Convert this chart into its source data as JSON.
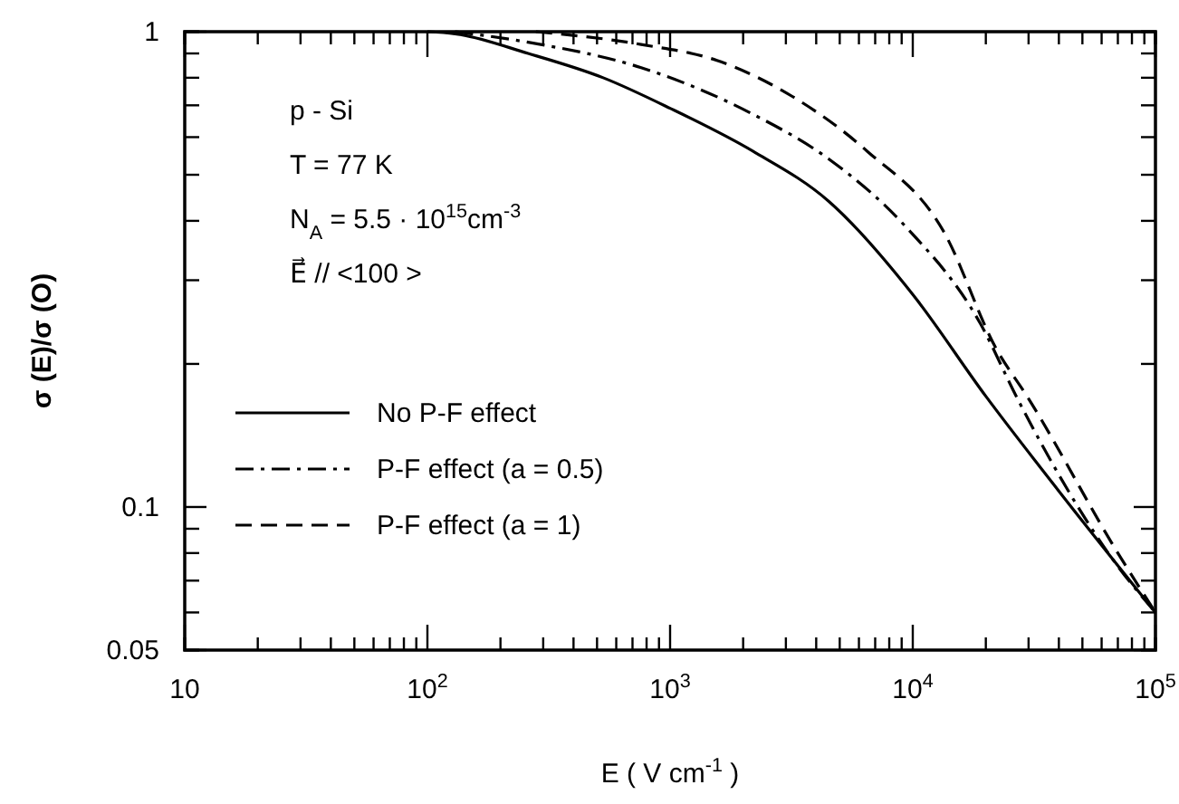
{
  "chart_data": {
    "type": "line",
    "xlabel": "E ( V cm$^{-1}$ )",
    "ylabel": "σ (E)/σ (O)",
    "log": "xy",
    "xlim": [
      10,
      100000
    ],
    "ylim": [
      0.05,
      1
    ],
    "xticks": [
      {
        "value": 10,
        "label": "10"
      },
      {
        "value": 20,
        "label": null
      },
      {
        "value": 30,
        "label": null
      },
      {
        "value": 40,
        "label": null
      },
      {
        "value": 50,
        "label": null
      },
      {
        "value": 60,
        "label": null
      },
      {
        "value": 70,
        "label": null
      },
      {
        "value": 80,
        "label": null
      },
      {
        "value": 90,
        "label": null
      },
      {
        "value": 100,
        "label": "10$^{2}$"
      },
      {
        "value": 200,
        "label": null
      },
      {
        "value": 300,
        "label": null
      },
      {
        "value": 400,
        "label": null
      },
      {
        "value": 500,
        "label": null
      },
      {
        "value": 600,
        "label": null
      },
      {
        "value": 700,
        "label": null
      },
      {
        "value": 800,
        "label": null
      },
      {
        "value": 900,
        "label": null
      },
      {
        "value": 1000,
        "label": "10$^{3}$"
      },
      {
        "value": 2000,
        "label": null
      },
      {
        "value": 3000,
        "label": null
      },
      {
        "value": 4000,
        "label": null
      },
      {
        "value": 5000,
        "label": null
      },
      {
        "value": 6000,
        "label": null
      },
      {
        "value": 7000,
        "label": null
      },
      {
        "value": 8000,
        "label": null
      },
      {
        "value": 9000,
        "label": null
      },
      {
        "value": 10000,
        "label": "10$^{4}$"
      },
      {
        "value": 20000,
        "label": null
      },
      {
        "value": 30000,
        "label": null
      },
      {
        "value": 40000,
        "label": null
      },
      {
        "value": 50000,
        "label": null
      },
      {
        "value": 60000,
        "label": null
      },
      {
        "value": 70000,
        "label": null
      },
      {
        "value": 80000,
        "label": null
      },
      {
        "value": 90000,
        "label": null
      },
      {
        "value": 100000,
        "label": "10$^{5}$"
      }
    ],
    "yticks": [
      0.05,
      {
        "value": 0.06,
        "label": null
      },
      {
        "value": 0.07,
        "label": null
      },
      {
        "value": 0.08,
        "label": null
      },
      {
        "value": 0.09,
        "label": null
      },
      0.1,
      {
        "value": 0.2,
        "label": null
      },
      {
        "value": 0.3,
        "label": null
      },
      {
        "value": 0.4,
        "label": null
      },
      {
        "value": 0.5,
        "label": null
      },
      {
        "value": 0.6,
        "label": null
      },
      {
        "value": 0.7,
        "label": null
      },
      {
        "value": 0.8,
        "label": null
      },
      {
        "value": 0.9,
        "label": null
      },
      1
    ],
    "grid": false,
    "legend": "bottom left",
    "marker": "none",
    "annotations": [
      "p - Si",
      "T = 77  K",
      "N$_{A}$ = 5.5 · 10$^{15}$cm$^{-3}$",
      "E⃗ // <100 >"
    ],
    "series": [
      {
        "name": "No P-F effect",
        "color": "#000000",
        "line_style": "solid",
        "x": [
          100,
          130,
          260,
          530,
          1000,
          2200,
          4500,
          10000,
          20000,
          40000,
          100000
        ],
        "values": [
          1,
          0.99,
          0.9,
          0.8,
          0.69,
          0.56,
          0.44,
          0.28,
          0.171,
          0.108,
          0.06
        ]
      },
      {
        "name": "P-F effect (a = 0.5)",
        "color": "#000000",
        "line_style": "dashdot",
        "x": [
          130,
          260,
          760,
          2200,
          4500,
          9300,
          19000,
          27000,
          70000,
          100000
        ],
        "values": [
          1,
          0.95,
          0.84,
          0.67,
          0.54,
          0.39,
          0.243,
          0.169,
          0.075,
          0.06
        ]
      },
      {
        "name": "P-F effect (a = 1)",
        "color": "#000000",
        "line_style": "dashed",
        "x": [
          280,
          760,
          1560,
          3200,
          6500,
          13400,
          22000,
          30000,
          70000,
          100000
        ],
        "values": [
          1,
          0.94,
          0.87,
          0.73,
          0.56,
          0.38,
          0.216,
          0.169,
          0.08,
          0.06
        ]
      }
    ]
  }
}
